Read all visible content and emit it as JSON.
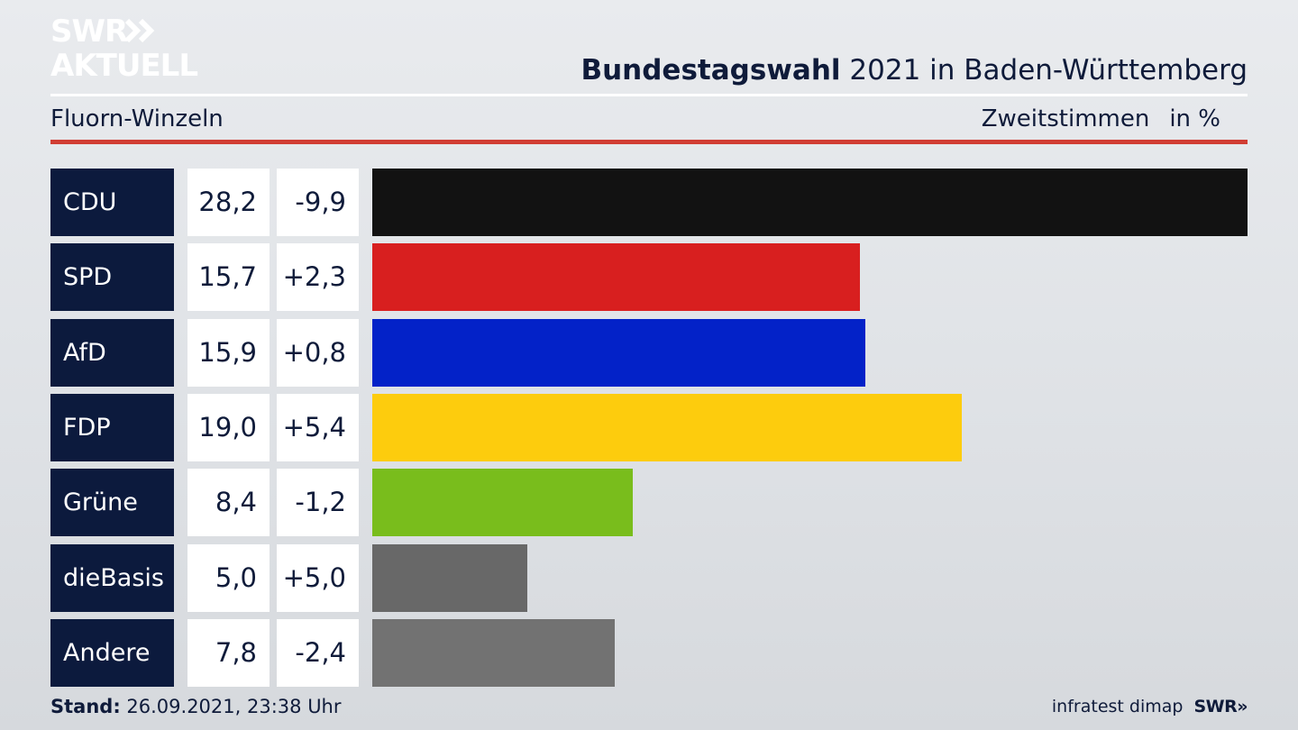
{
  "brand": {
    "line1": "SWR",
    "line2": "AKTUELL",
    "small": "SWR»",
    "color": "#ffffff"
  },
  "header": {
    "title_bold": "Bundestagswahl",
    "title_rest": " 2021 in Baden-Württemberg",
    "subtitle": "Fluorn-Winzeln",
    "measure": "Zweitstimmen",
    "unit": "in %"
  },
  "footer": {
    "stand_label": "Stand:",
    "stand_value": "26.09.2021, 23:38 Uhr",
    "source": "infratest dimap"
  },
  "colors": {
    "accent": "#d13d33",
    "label_bg": "#0c1a3d"
  },
  "chart_data": {
    "type": "bar",
    "orientation": "horizontal",
    "categories": [
      "CDU",
      "SPD",
      "AfD",
      "FDP",
      "Grüne",
      "dieBasis",
      "Andere"
    ],
    "values": [
      28.2,
      15.7,
      15.9,
      19.0,
      8.4,
      5.0,
      7.8
    ],
    "value_labels": [
      "28,2",
      "15,7",
      "15,9",
      "19,0",
      "8,4",
      "5,0",
      "7,8"
    ],
    "changes": [
      "-9,9",
      "+2,3",
      "+0,8",
      "+5,4",
      "-1,2",
      "+5,0",
      "-2,4"
    ],
    "colors": [
      "#121212",
      "#d81f1f",
      "#0322c8",
      "#fdcc0d",
      "#79bd1c",
      "#686868",
      "#727272"
    ],
    "xlim": [
      0,
      28.2
    ],
    "grid": false,
    "legend": "none"
  }
}
